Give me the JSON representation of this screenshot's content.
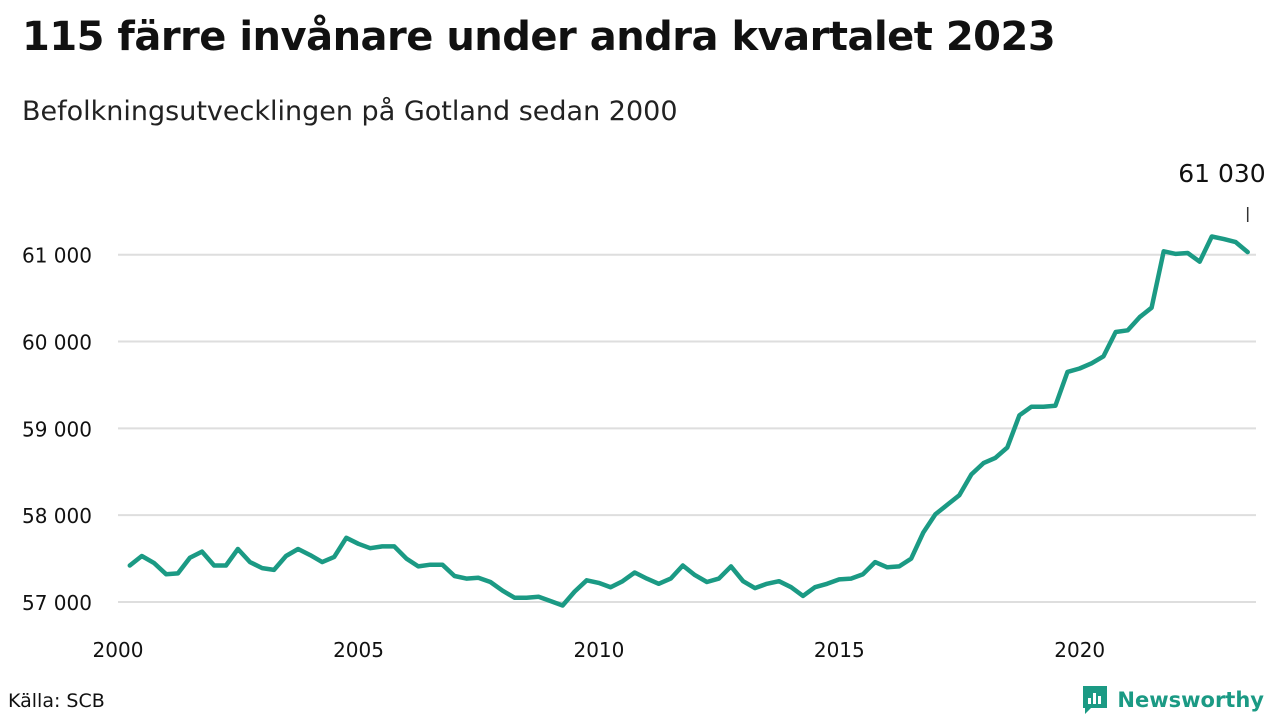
{
  "title": "115 färre invånare under andra kvartalet 2023",
  "subtitle": "Befolkningsutvecklingen på Gotland sedan 2000",
  "source": "Källa: SCB",
  "brand": {
    "name": "Newsworthy",
    "icon": "bar-chart-logo-icon",
    "color": "#1b9a84"
  },
  "colors": {
    "line": "#1b9a84",
    "grid": "#dedede",
    "text": "#111111"
  },
  "chart_data": {
    "type": "line",
    "title": "115 färre invånare under andra kvartalet 2023",
    "subtitle": "Befolkningsutvecklingen på Gotland sedan 2000",
    "xlabel": "",
    "ylabel": "",
    "xlim": [
      "2000-01-01",
      "2023-09-01"
    ],
    "ylim": [
      57000,
      61400
    ],
    "grid": true,
    "x_ticks": [
      {
        "label": "2000",
        "date": "2000-01-01"
      },
      {
        "label": "2005",
        "date": "2005-01-01"
      },
      {
        "label": "2010",
        "date": "2010-01-01"
      },
      {
        "label": "2015",
        "date": "2015-01-01"
      },
      {
        "label": "2020",
        "date": "2020-01-01"
      }
    ],
    "y_ticks": [
      {
        "label": "57 000",
        "value": 57000
      },
      {
        "label": "58 000",
        "value": 58000
      },
      {
        "label": "59 000",
        "value": 59000
      },
      {
        "label": "60 000",
        "value": 60000
      },
      {
        "label": "61 000",
        "value": 61000
      }
    ],
    "end_label": "61 030",
    "series": [
      {
        "color": "#1b9a84",
        "points": [
          [
            "2000-03-31",
            57420
          ],
          [
            "2000-06-30",
            57530
          ],
          [
            "2000-09-30",
            57450
          ],
          [
            "2000-12-31",
            57320
          ],
          [
            "2001-03-31",
            57330
          ],
          [
            "2001-06-30",
            57510
          ],
          [
            "2001-09-30",
            57580
          ],
          [
            "2001-12-31",
            57420
          ],
          [
            "2002-03-31",
            57420
          ],
          [
            "2002-06-30",
            57610
          ],
          [
            "2002-09-30",
            57460
          ],
          [
            "2002-12-31",
            57390
          ],
          [
            "2003-03-31",
            57370
          ],
          [
            "2003-06-30",
            57530
          ],
          [
            "2003-09-30",
            57610
          ],
          [
            "2003-12-31",
            57540
          ],
          [
            "2004-03-31",
            57460
          ],
          [
            "2004-06-30",
            57520
          ],
          [
            "2004-09-30",
            57740
          ],
          [
            "2004-12-31",
            57670
          ],
          [
            "2005-03-31",
            57620
          ],
          [
            "2005-06-30",
            57640
          ],
          [
            "2005-09-30",
            57640
          ],
          [
            "2005-12-31",
            57500
          ],
          [
            "2006-03-31",
            57410
          ],
          [
            "2006-06-30",
            57430
          ],
          [
            "2006-09-30",
            57430
          ],
          [
            "2006-12-31",
            57300
          ],
          [
            "2007-03-31",
            57270
          ],
          [
            "2007-06-30",
            57280
          ],
          [
            "2007-09-30",
            57230
          ],
          [
            "2007-12-31",
            57130
          ],
          [
            "2008-03-31",
            57050
          ],
          [
            "2008-06-30",
            57050
          ],
          [
            "2008-09-30",
            57060
          ],
          [
            "2008-12-31",
            57010
          ],
          [
            "2009-03-31",
            56960
          ],
          [
            "2009-06-30",
            57120
          ],
          [
            "2009-09-30",
            57250
          ],
          [
            "2009-12-31",
            57220
          ],
          [
            "2010-03-31",
            57170
          ],
          [
            "2010-06-30",
            57240
          ],
          [
            "2010-09-30",
            57340
          ],
          [
            "2010-12-31",
            57270
          ],
          [
            "2011-03-31",
            57210
          ],
          [
            "2011-06-30",
            57270
          ],
          [
            "2011-09-30",
            57420
          ],
          [
            "2011-12-31",
            57310
          ],
          [
            "2012-03-31",
            57230
          ],
          [
            "2012-06-30",
            57270
          ],
          [
            "2012-09-30",
            57410
          ],
          [
            "2012-12-31",
            57240
          ],
          [
            "2013-03-31",
            57160
          ],
          [
            "2013-06-30",
            57210
          ],
          [
            "2013-09-30",
            57240
          ],
          [
            "2013-12-31",
            57170
          ],
          [
            "2014-03-31",
            57070
          ],
          [
            "2014-06-30",
            57170
          ],
          [
            "2014-09-30",
            57210
          ],
          [
            "2014-12-31",
            57260
          ],
          [
            "2015-03-31",
            57270
          ],
          [
            "2015-06-30",
            57320
          ],
          [
            "2015-09-30",
            57460
          ],
          [
            "2015-12-31",
            57400
          ],
          [
            "2016-03-31",
            57410
          ],
          [
            "2016-06-30",
            57500
          ],
          [
            "2016-09-30",
            57800
          ],
          [
            "2016-12-31",
            58010
          ],
          [
            "2017-03-31",
            58120
          ],
          [
            "2017-06-30",
            58230
          ],
          [
            "2017-09-30",
            58470
          ],
          [
            "2017-12-31",
            58600
          ],
          [
            "2018-03-31",
            58660
          ],
          [
            "2018-06-30",
            58780
          ],
          [
            "2018-09-30",
            59150
          ],
          [
            "2018-12-31",
            59250
          ],
          [
            "2019-03-31",
            59250
          ],
          [
            "2019-06-30",
            59260
          ],
          [
            "2019-09-30",
            59650
          ],
          [
            "2019-12-31",
            59690
          ],
          [
            "2020-03-31",
            59750
          ],
          [
            "2020-06-30",
            59830
          ],
          [
            "2020-09-30",
            60110
          ],
          [
            "2020-12-31",
            60130
          ],
          [
            "2021-03-31",
            60280
          ],
          [
            "2021-06-30",
            60390
          ],
          [
            "2021-09-30",
            61040
          ],
          [
            "2021-12-31",
            61010
          ],
          [
            "2022-03-31",
            61020
          ],
          [
            "2022-06-30",
            60920
          ],
          [
            "2022-09-30",
            61210
          ],
          [
            "2022-12-31",
            61180
          ],
          [
            "2023-03-31",
            61145
          ],
          [
            "2023-06-30",
            61030
          ]
        ]
      }
    ]
  }
}
